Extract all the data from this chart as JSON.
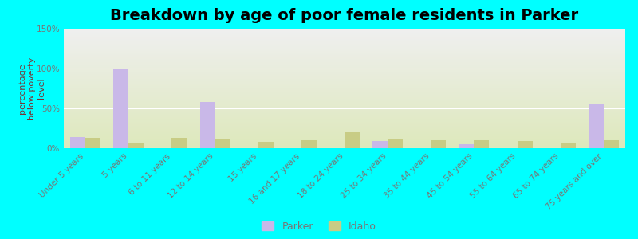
{
  "title": "Breakdown by age of poor female residents in Parker",
  "ylabel": "percentage\nbelow poverty\nlevel",
  "categories": [
    "Under 5 years",
    "5 years",
    "6 to 11 years",
    "12 to 14 years",
    "15 years",
    "16 and 17 years",
    "18 to 24 years",
    "25 to 34 years",
    "35 to 44 years",
    "45 to 54 years",
    "55 to 64 years",
    "65 to 74 years",
    "75 years and over"
  ],
  "parker_values": [
    14,
    100,
    0,
    58,
    0,
    0,
    0,
    9,
    0,
    5,
    0,
    0,
    55
  ],
  "idaho_values": [
    13,
    7,
    13,
    12,
    8,
    10,
    20,
    11,
    10,
    10,
    9,
    7,
    10
  ],
  "parker_color": "#c9b8e8",
  "idaho_color": "#c8cc85",
  "outer_bg": "#00ffff",
  "plot_bg_top": "#eeeeee",
  "plot_bg_bottom": "#dde8bb",
  "ylim": [
    0,
    150
  ],
  "yticks": [
    0,
    50,
    100,
    150
  ],
  "ytick_labels": [
    "0%",
    "50%",
    "100%",
    "150%"
  ],
  "bar_width": 0.35,
  "title_fontsize": 14,
  "tick_fontsize": 7.5,
  "ylabel_fontsize": 8,
  "ylabel_color": "#7a3333",
  "tick_color": "#777777",
  "grid_color": "#ffffff",
  "legend_fontsize": 9
}
